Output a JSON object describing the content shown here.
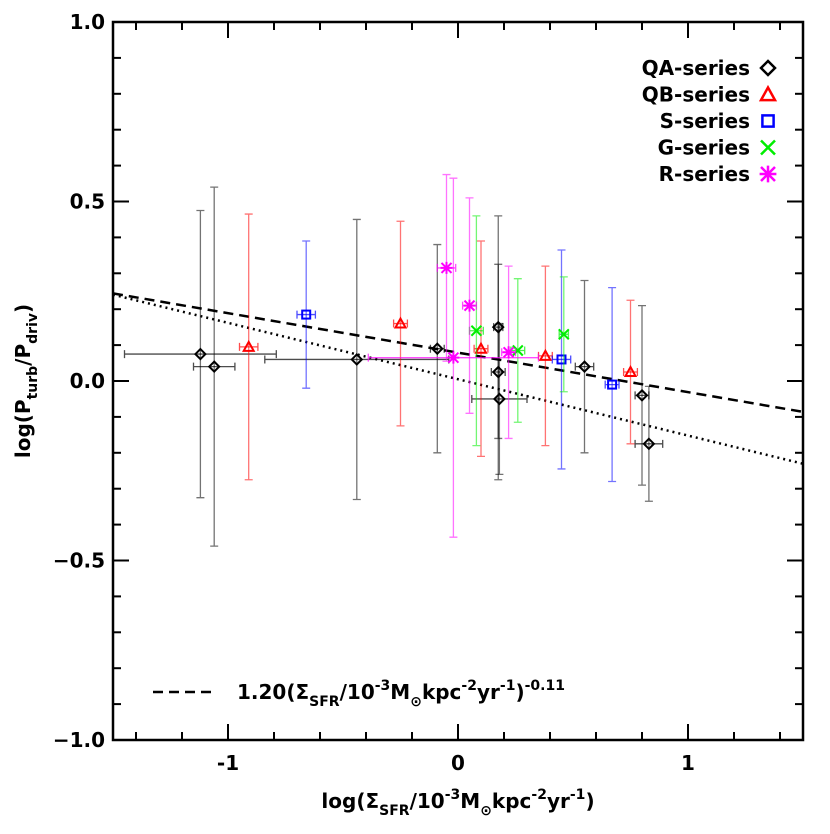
{
  "chart_data": {
    "type": "scatter",
    "x_label": [
      {
        "text": "log(Σ"
      },
      {
        "text": "SFR",
        "shift": "sub"
      },
      {
        "text": "/10"
      },
      {
        "text": "-3",
        "shift": "sup"
      },
      {
        "text": "M"
      },
      {
        "text": "⊙",
        "shift": "sub"
      },
      {
        "text": "kpc"
      },
      {
        "text": "-2",
        "shift": "sup"
      },
      {
        "text": "yr"
      },
      {
        "text": "-1",
        "shift": "sup"
      },
      {
        "text": ")"
      }
    ],
    "y_label": [
      {
        "text": "log(P"
      },
      {
        "text": "turb",
        "shift": "sub"
      },
      {
        "text": "/P"
      },
      {
        "text": "driv",
        "shift": "sub"
      },
      {
        "text": ")"
      }
    ],
    "xlim": [
      -1.5,
      1.5
    ],
    "ylim": [
      -1.0,
      1.0
    ],
    "xticks": [
      -1,
      0,
      1
    ],
    "yticks": [
      {
        "value": 1.0,
        "label": "1.0"
      },
      {
        "value": 0.5,
        "label": "0.5"
      },
      {
        "value": 0.0,
        "label": "0.0"
      },
      {
        "value": -0.5,
        "label": "−0.5"
      },
      {
        "value": -1.0,
        "label": "−1.0"
      }
    ],
    "minor_xticks": [
      -1.4,
      -1.2,
      -0.8,
      -0.6,
      -0.4,
      -0.2,
      0.2,
      0.4,
      0.6,
      0.8,
      1.2,
      1.4
    ],
    "minor_yticks": [
      -0.9,
      -0.8,
      -0.7,
      -0.6,
      -0.4,
      -0.3,
      -0.2,
      -0.1,
      0.1,
      0.2,
      0.3,
      0.4,
      0.6,
      0.7,
      0.8,
      0.9
    ],
    "legend": "top-right",
    "series": [
      {
        "name": "QA-series",
        "color": "#000000",
        "marker": "diamond",
        "x": [
          -1.12,
          -0.44,
          0.18,
          0.83,
          -1.06,
          -0.09,
          0.175,
          0.175,
          0.55,
          0.8
        ],
        "values": [
          0.075,
          0.06,
          -0.05,
          -0.175,
          0.04,
          0.09,
          0.15,
          0.025,
          0.04,
          -0.04
        ],
        "yerr": [
          0.4,
          0.39,
          0.21,
          0.16,
          0.5,
          0.29,
          0.31,
          0.3,
          0.24,
          0.25
        ],
        "xerr": [
          0.33,
          0.4,
          0.12,
          0.06,
          0.09,
          0.03,
          0.02,
          0.03,
          0.04,
          0.03
        ]
      },
      {
        "name": "QB-series",
        "color": "#ff0000",
        "marker": "triangle",
        "x": [
          -0.91,
          -0.25,
          0.1,
          0.38,
          0.75
        ],
        "values": [
          0.095,
          0.16,
          0.09,
          0.07,
          0.025
        ],
        "yerr": [
          0.37,
          0.285,
          0.3,
          0.25,
          0.2
        ],
        "xerr": [
          0.04,
          0.03,
          0.03,
          0.03,
          0.03
        ]
      },
      {
        "name": "S-series",
        "color": "#0000ff",
        "marker": "square",
        "x": [
          -0.66,
          0.45,
          0.67
        ],
        "values": [
          0.185,
          0.06,
          -0.01
        ],
        "yerr": [
          0.205,
          0.305,
          0.27
        ],
        "xerr": [
          0.04,
          0.04,
          0.03
        ]
      },
      {
        "name": "G-series",
        "color": "#00ee00",
        "marker": "x",
        "x": [
          0.08,
          0.26,
          0.46
        ],
        "values": [
          0.14,
          0.085,
          0.13
        ],
        "yerr": [
          0.32,
          0.2,
          0.16
        ],
        "xerr": [
          0.03,
          0.03,
          0.02
        ]
      },
      {
        "name": "R-series",
        "color": "#ff00ff",
        "marker": "asterisk",
        "x": [
          -0.02,
          -0.05,
          0.05,
          0.22
        ],
        "values": [
          0.065,
          0.315,
          0.21,
          0.08
        ],
        "yerr": [
          0.5,
          0.26,
          0.3,
          0.24
        ],
        "xerr": [
          0.37,
          0.04,
          0.03,
          0.03
        ]
      }
    ],
    "lines": [
      {
        "intercept": 0.079,
        "slope": -0.11,
        "style": "dashed",
        "label": [
          {
            "text": "1.20(Σ"
          },
          {
            "text": "SFR",
            "shift": "sub"
          },
          {
            "text": "/10"
          },
          {
            "text": "-3",
            "shift": "sup"
          },
          {
            "text": "M"
          },
          {
            "text": "⊙",
            "shift": "sub"
          },
          {
            "text": "kpc"
          },
          {
            "text": "-2",
            "shift": "sup"
          },
          {
            "text": "yr"
          },
          {
            "text": "-1",
            "shift": "sup"
          },
          {
            "text": ")"
          },
          {
            "text": "-0.11",
            "shift": "sup"
          }
        ]
      },
      {
        "intercept": 0.005,
        "slope": -0.157,
        "style": "dotted"
      }
    ]
  }
}
